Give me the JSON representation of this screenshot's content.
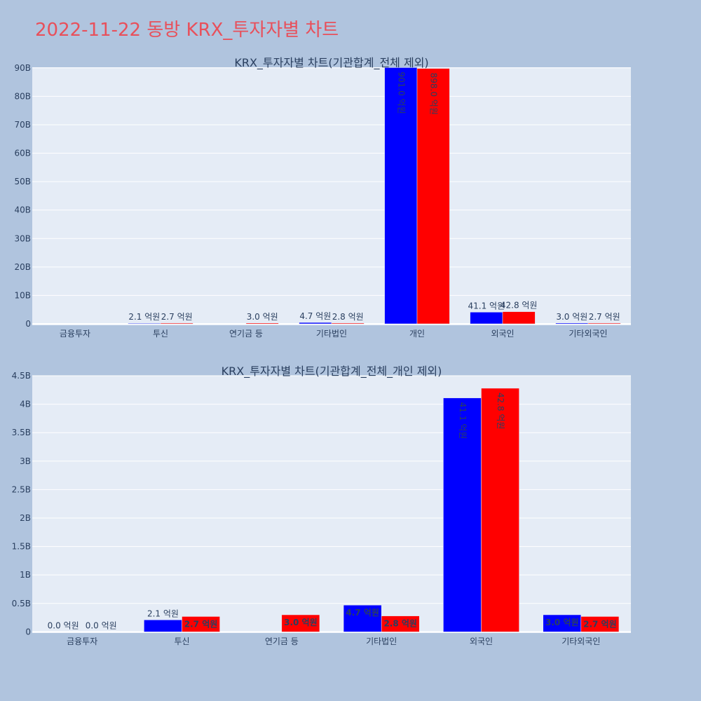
{
  "page_title": "2022-11-22 동방 KRX_투자자별 차트",
  "colors": {
    "background": "#b0c4de",
    "plot_bg": "#e5ecf6",
    "title": "#e8505b",
    "buy": "#0000ff",
    "sell": "#ff0000",
    "text": "#2a3f5f"
  },
  "chart_data": [
    {
      "type": "bar",
      "title": "KRX_투자자별 차트(기관합계_전체 제외)",
      "categories": [
        "금융투자",
        "투신",
        "연기금 등",
        "기타법인",
        "개인",
        "외국인",
        "기타외국인"
      ],
      "series": [
        {
          "color": "#0000ff",
          "values": [
            0.0,
            0.21,
            0.0,
            0.47,
            90.1,
            4.11,
            0.3
          ],
          "labels": [
            "",
            "2.1 억원",
            "",
            "4.7 억원",
            "901.0 억원",
            "41.1 억원",
            "3.0 억원"
          ]
        },
        {
          "color": "#ff0000",
          "values": [
            0.0,
            0.27,
            0.3,
            0.28,
            89.8,
            4.28,
            0.27
          ],
          "labels": [
            "",
            "2.7 억원",
            "3.0 억원",
            "2.8 억원",
            "898.0 억원",
            "42.8 억원",
            "2.7 억원"
          ]
        }
      ],
      "yticks": [
        "0",
        "10B",
        "20B",
        "30B",
        "40B",
        "50B",
        "60B",
        "70B",
        "80B",
        "90B"
      ],
      "ytick_values": [
        0,
        10,
        20,
        30,
        40,
        50,
        60,
        70,
        80,
        90
      ],
      "ylim": [
        -0.5,
        90.2
      ],
      "grid": true,
      "xlabel": "",
      "ylabel": ""
    },
    {
      "type": "bar",
      "title": "KRX_투자자별 차트(기관합계_전체_개인 제외)",
      "categories": [
        "금융투자",
        "투신",
        "연기금 등",
        "기타법인",
        "외국인",
        "기타외국인"
      ],
      "series": [
        {
          "color": "#0000ff",
          "values": [
            0.0,
            0.21,
            0.0,
            0.47,
            4.11,
            0.3
          ],
          "labels": [
            "0.0 억원",
            "2.1 억원",
            "",
            "4.7 억원",
            "41.1 억원",
            "3.0 억원"
          ]
        },
        {
          "color": "#ff0000",
          "values": [
            0.0,
            0.27,
            0.3,
            0.28,
            4.28,
            0.27
          ],
          "labels": [
            "0.0 억원",
            "2.7 억원",
            "3.0 억원",
            "2.8 억원",
            "42.8 억원",
            "2.7 억원"
          ]
        }
      ],
      "yticks": [
        "0",
        "0.5B",
        "1B",
        "1.5B",
        "2B",
        "2.5B",
        "3B",
        "3.5B",
        "4B",
        "4.5B"
      ],
      "ytick_values": [
        0,
        0.5,
        1,
        1.5,
        2,
        2.5,
        3,
        3.5,
        4,
        4.5
      ],
      "ylim": [
        -0.02,
        4.5
      ],
      "grid": true,
      "xlabel": "",
      "ylabel": ""
    }
  ]
}
